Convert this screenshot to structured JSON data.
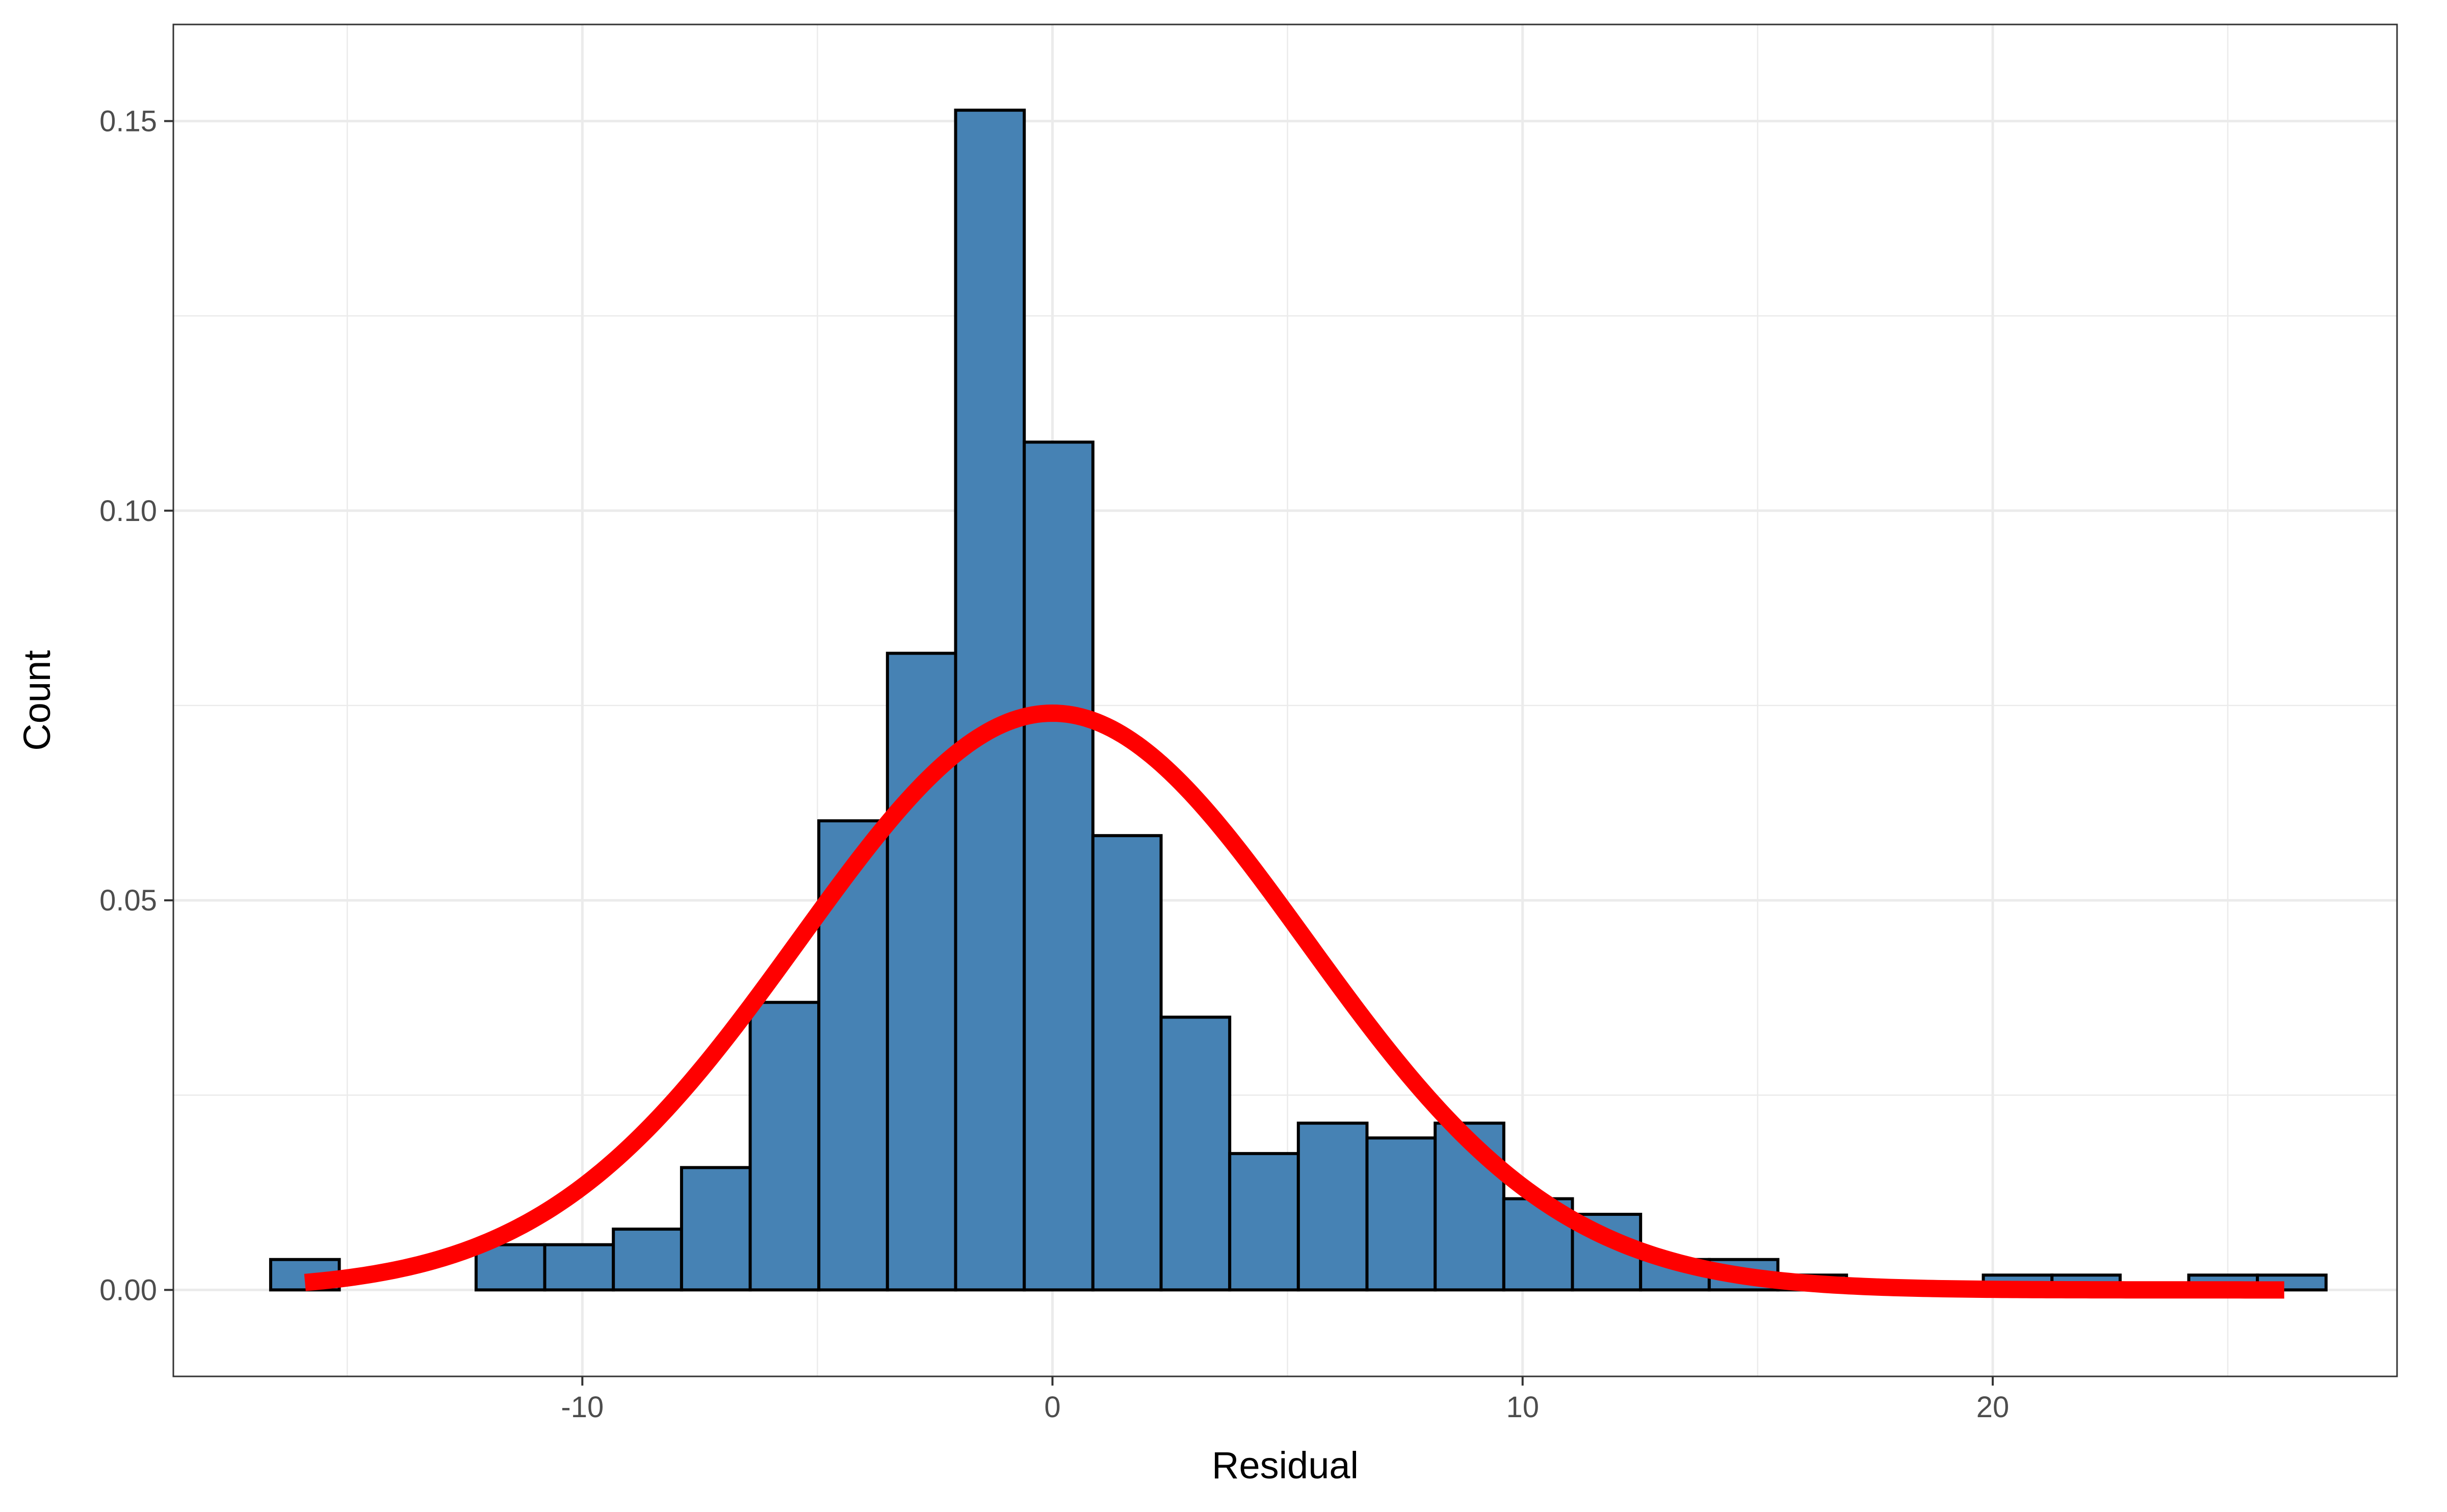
{
  "chart_data": {
    "type": "bar",
    "xlabel": "Residual",
    "ylabel": "Count",
    "xlim": [
      -18.7,
      28.6
    ],
    "ylim": [
      -0.0111,
      0.1624
    ],
    "x_ticks": [
      -10,
      0,
      10,
      20
    ],
    "x_tick_labels": [
      "-10",
      "0",
      "10",
      "20"
    ],
    "y_ticks": [
      0.0,
      0.05,
      0.1,
      0.15
    ],
    "y_tick_labels": [
      "0.00",
      "0.05",
      "0.10",
      "0.15"
    ],
    "bin_width": 1.457,
    "bins": [
      {
        "x0": -16.63,
        "x1": -15.17,
        "value": 0.0039
      },
      {
        "x0": -15.17,
        "x1": -13.72,
        "value": 0.0
      },
      {
        "x0": -13.72,
        "x1": -12.26,
        "value": 0.0
      },
      {
        "x0": -12.26,
        "x1": -10.8,
        "value": 0.0058
      },
      {
        "x0": -10.8,
        "x1": -9.34,
        "value": 0.0058
      },
      {
        "x0": -9.34,
        "x1": -7.89,
        "value": 0.0078
      },
      {
        "x0": -7.89,
        "x1": -6.43,
        "value": 0.0157
      },
      {
        "x0": -6.43,
        "x1": -4.97,
        "value": 0.0369
      },
      {
        "x0": -4.97,
        "x1": -3.51,
        "value": 0.0602
      },
      {
        "x0": -3.51,
        "x1": -2.06,
        "value": 0.0817
      },
      {
        "x0": -2.06,
        "x1": -0.6,
        "value": 0.1514
      },
      {
        "x0": -0.6,
        "x1": 0.86,
        "value": 0.1088
      },
      {
        "x0": 0.86,
        "x1": 2.31,
        "value": 0.0583
      },
      {
        "x0": 2.31,
        "x1": 3.77,
        "value": 0.035
      },
      {
        "x0": 3.77,
        "x1": 5.23,
        "value": 0.0175
      },
      {
        "x0": 5.23,
        "x1": 6.69,
        "value": 0.0214
      },
      {
        "x0": 6.69,
        "x1": 8.14,
        "value": 0.0195
      },
      {
        "x0": 8.14,
        "x1": 9.6,
        "value": 0.0214
      },
      {
        "x0": 9.6,
        "x1": 11.06,
        "value": 0.0117
      },
      {
        "x0": 11.06,
        "x1": 12.51,
        "value": 0.0097
      },
      {
        "x0": 12.51,
        "x1": 13.97,
        "value": 0.0039
      },
      {
        "x0": 13.97,
        "x1": 15.43,
        "value": 0.0039
      },
      {
        "x0": 15.43,
        "x1": 16.89,
        "value": 0.0019
      },
      {
        "x0": 16.89,
        "x1": 18.34,
        "value": 0.0
      },
      {
        "x0": 18.34,
        "x1": 19.8,
        "value": 0.0
      },
      {
        "x0": 19.8,
        "x1": 21.26,
        "value": 0.0019
      },
      {
        "x0": 21.26,
        "x1": 22.71,
        "value": 0.0019
      },
      {
        "x0": 22.71,
        "x1": 24.17,
        "value": 0.0
      },
      {
        "x0": 24.17,
        "x1": 25.63,
        "value": 0.0019
      },
      {
        "x0": 25.63,
        "x1": 27.09,
        "value": 0.0019
      }
    ],
    "normal_curve": {
      "mean": 0.0,
      "sd": 5.39,
      "x_from": -15.9,
      "x_to": 26.2
    },
    "colors": {
      "bar_fill": "#4682B4",
      "bar_outline": "#000000",
      "curve": "#FF0000",
      "grid": "#EBEBEB",
      "panel_border": "#333333"
    },
    "grid": true,
    "legend": "none"
  }
}
